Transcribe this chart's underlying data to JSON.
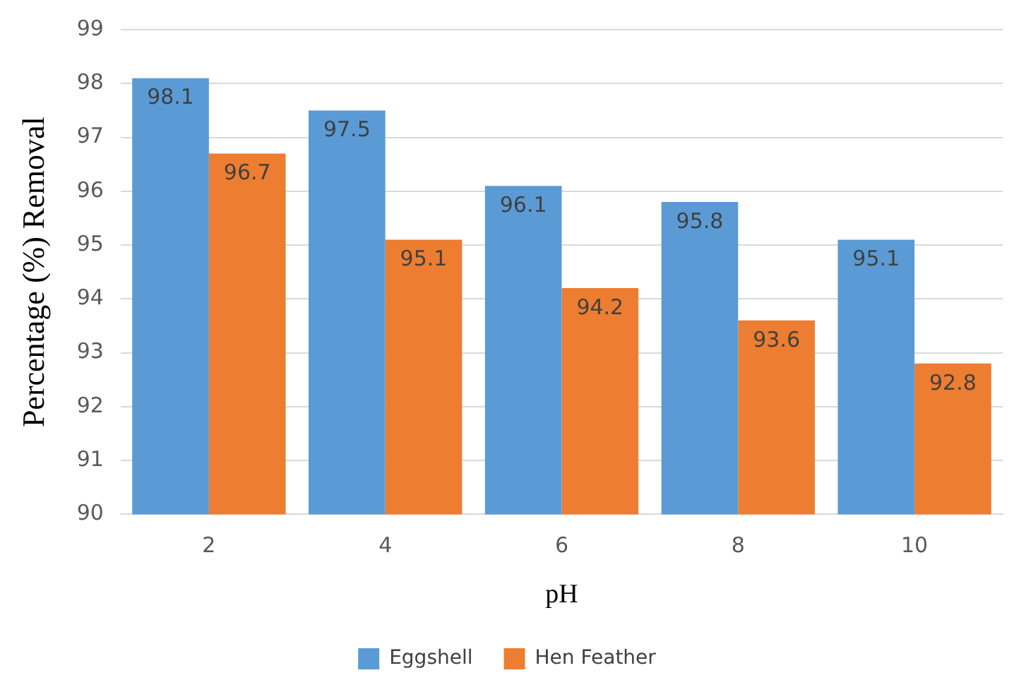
{
  "chart_data": {
    "type": "bar",
    "xlabel": "pH",
    "ylabel": "Percentage (%) Removal",
    "categories": [
      "2",
      "4",
      "6",
      "8",
      "10"
    ],
    "series": [
      {
        "name": "Eggshell",
        "color": "#5b9bd5",
        "values": [
          98.1,
          97.5,
          96.1,
          95.8,
          95.1
        ]
      },
      {
        "name": "Hen Feather",
        "color": "#ed7d31",
        "values": [
          96.7,
          95.1,
          94.2,
          93.6,
          92.8
        ]
      }
    ],
    "ylim": [
      90,
      99
    ],
    "yticks": [
      90,
      91,
      92,
      93,
      94,
      95,
      96,
      97,
      98,
      99
    ],
    "grid": "y",
    "legend": "bottom",
    "data_labels": true
  }
}
